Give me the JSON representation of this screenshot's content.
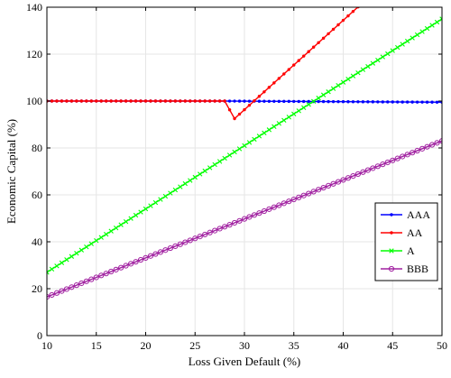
{
  "chart_data": {
    "type": "line",
    "title": "",
    "xlabel": "Loss Given Default (%)",
    "ylabel": "Economic Capital (%)",
    "xlim": [
      10,
      50
    ],
    "ylim": [
      0,
      140
    ],
    "x_ticks": [
      10,
      15,
      20,
      25,
      30,
      35,
      40,
      45,
      50
    ],
    "y_ticks": [
      0,
      20,
      40,
      60,
      80,
      100,
      120,
      140
    ],
    "grid": true,
    "legend_position": "right",
    "series": [
      {
        "name": "AAA",
        "color": "#0000ff",
        "marker": "dot",
        "points": [
          [
            10,
            100
          ],
          [
            28,
            100
          ],
          [
            50,
            99.5
          ]
        ]
      },
      {
        "name": "AA",
        "color": "#ff0000",
        "marker": "dot",
        "points": [
          [
            10,
            100
          ],
          [
            28,
            100
          ],
          [
            29,
            92.5
          ],
          [
            50,
            172.5
          ]
        ]
      },
      {
        "name": "A",
        "color": "#00ff00",
        "marker": "x",
        "points": [
          [
            10,
            27
          ],
          [
            50,
            135
          ]
        ]
      },
      {
        "name": "BBB",
        "color": "#a020a0",
        "marker": "circle",
        "points": [
          [
            10,
            16.5
          ],
          [
            50,
            83
          ]
        ]
      }
    ]
  }
}
